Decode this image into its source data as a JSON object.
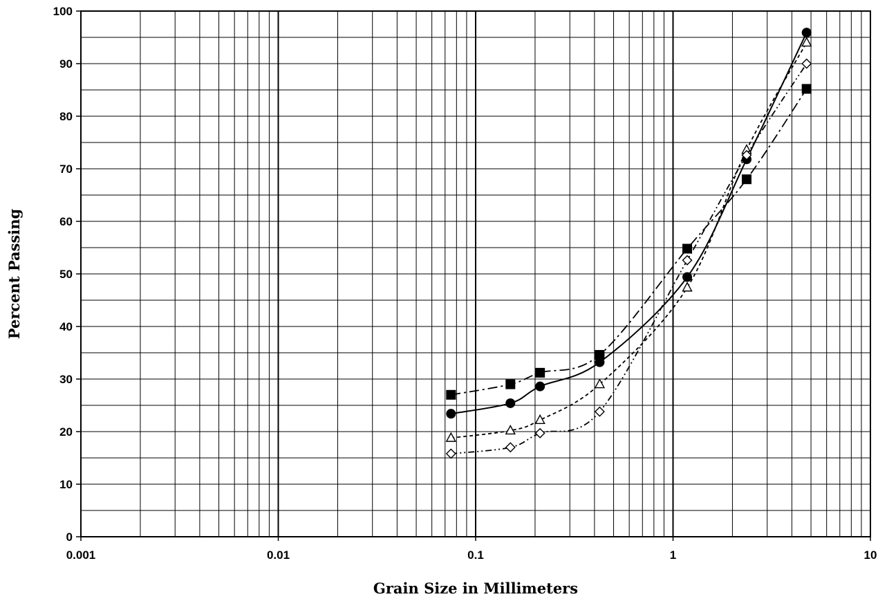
{
  "chart_data": {
    "type": "scatter",
    "title": "",
    "xlabel": "Grain Size in Millimeters",
    "ylabel": "Percent Passing",
    "x_scale": "log",
    "xlim": [
      0.001,
      10
    ],
    "ylim": [
      0,
      100
    ],
    "grid": true,
    "x_tick_labels": [
      "0.001",
      "0.01",
      "0.1",
      "1",
      "10"
    ],
    "y_tick_labels": [
      "0",
      "10",
      "20",
      "30",
      "40",
      "50",
      "60",
      "70",
      "80",
      "90",
      "100"
    ],
    "series": [
      {
        "marker": "filled-square",
        "line_style": "dash-dot",
        "x": [
          0.075,
          0.15,
          0.212,
          0.425,
          1.18,
          2.36,
          4.75
        ],
        "y": [
          27.0,
          29.0,
          31.2,
          34.6,
          54.8,
          68.0,
          85.2
        ]
      },
      {
        "marker": "filled-circle",
        "line_style": "solid",
        "x": [
          0.075,
          0.15,
          0.212,
          0.425,
          1.18,
          2.36,
          4.75
        ],
        "y": [
          23.4,
          25.4,
          28.6,
          33.2,
          49.4,
          71.8,
          95.9
        ]
      },
      {
        "marker": "open-triangle",
        "line_style": "dashed",
        "x": [
          0.075,
          0.15,
          0.212,
          0.425,
          1.18,
          2.36,
          4.75
        ],
        "y": [
          18.8,
          20.2,
          22.2,
          29.0,
          47.4,
          73.6,
          94.0
        ]
      },
      {
        "marker": "open-diamond",
        "line_style": "dash-dot-dot",
        "x": [
          0.075,
          0.15,
          0.212,
          0.425,
          1.18,
          2.36,
          4.75
        ],
        "y": [
          15.8,
          17.0,
          19.7,
          23.8,
          52.6,
          72.6,
          90.0
        ]
      }
    ]
  }
}
